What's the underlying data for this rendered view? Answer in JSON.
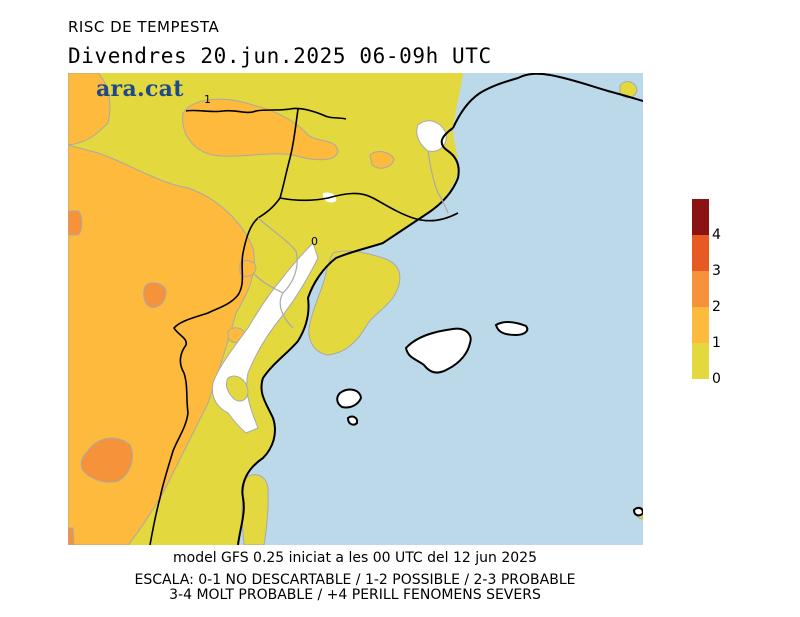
{
  "header": {
    "title": "RISC DE TEMPESTA",
    "subtitle": "Divendres  20.jun.2025 06-09h UTC"
  },
  "logo": {
    "text": "ara.cat"
  },
  "map": {
    "contour_labels": [
      "1",
      "0"
    ]
  },
  "legend": {
    "ticks": [
      "4",
      "3",
      "2",
      "1",
      "0"
    ],
    "colors": [
      "#8b1313",
      "#e85a24",
      "#f6923a",
      "#fdba3c",
      "#e4d83f"
    ]
  },
  "footer": {
    "model_line": "model GFS 0.25 iniciat a les 00 UTC del 12 jun 2025",
    "scale_line_1": "ESCALA: 0-1 NO DESCARTABLE / 1-2 POSSIBLE / 2-3 PROBABLE",
    "scale_line_2": "3-4 MOLT PROBABLE / +4 PERILL FENOMENS SEVERS"
  },
  "colors": {
    "sea": "#bcd9ea",
    "level_0_1": "#e4d83f",
    "level_1_2": "#fdba3c",
    "level_2_3": "#f6923a",
    "no_risk": "#ffffff",
    "border": "#000000",
    "region_border": "#a9a9a9"
  }
}
